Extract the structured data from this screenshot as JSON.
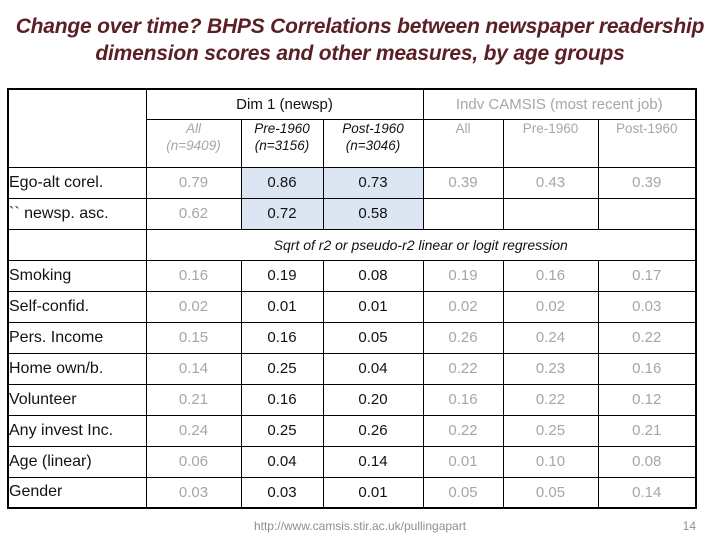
{
  "slide": {
    "title_line1": "Change over time? BHPS Correlations between newspaper readership",
    "title_line2": "dimension scores and other measures, by age groups"
  },
  "colors": {
    "title_text": "#5b2025",
    "muted_text": "#a6a6a6",
    "highlight_fill": "#dce6f2",
    "border": "#000000"
  },
  "table": {
    "groups": [
      {
        "label": "Dim 1 (newsp)",
        "muted": false
      },
      {
        "label": "Indv CAMSIS (most recent job)",
        "muted": true
      }
    ],
    "col_headers": [
      {
        "label": "All",
        "sub": "(n=9409)",
        "muted": true,
        "italic": true,
        "bold": false
      },
      {
        "label": "Pre-1960",
        "sub": "(n=3156)",
        "muted": false,
        "italic": true,
        "bold": true
      },
      {
        "label": "Post-1960",
        "sub": "(n=3046)",
        "muted": false,
        "italic": true,
        "bold": true
      },
      {
        "label": "All",
        "sub": "",
        "muted": true,
        "italic": false,
        "bold": false
      },
      {
        "label": "Pre-1960",
        "sub": "",
        "muted": true,
        "italic": false,
        "bold": false
      },
      {
        "label": "Post-1960",
        "sub": "",
        "muted": true,
        "italic": false,
        "bold": false
      }
    ],
    "value_style_pattern": [
      "muted",
      "strong",
      "strong",
      "muted",
      "muted",
      "muted"
    ],
    "top_rows": [
      {
        "label": "Ego-alt corel.",
        "values": [
          "0.79",
          "0.86",
          "0.73",
          "0.39",
          "0.43",
          "0.39"
        ],
        "highlights": [
          1,
          2
        ]
      },
      {
        "label": "`` newsp. asc.",
        "values": [
          "0.62",
          "0.72",
          "0.58",
          "",
          "",
          ""
        ],
        "highlights": [
          1,
          2
        ]
      }
    ],
    "divider_label": "Sqrt of r2 or pseudo-r2 linear or logit regression",
    "rows": [
      {
        "label": "Smoking",
        "values": [
          "0.16",
          "0.19",
          "0.08",
          "0.19",
          "0.16",
          "0.17"
        ]
      },
      {
        "label": "Self-confid.",
        "values": [
          "0.02",
          "0.01",
          "0.01",
          "0.02",
          "0.02",
          "0.03"
        ]
      },
      {
        "label": "Pers. Income",
        "values": [
          "0.15",
          "0.16",
          "0.05",
          "0.26",
          "0.24",
          "0.22"
        ]
      },
      {
        "label": "Home own/b.",
        "values": [
          "0.14",
          "0.25",
          "0.04",
          "0.22",
          "0.23",
          "0.16"
        ]
      },
      {
        "label": "Volunteer",
        "values": [
          "0.21",
          "0.16",
          "0.20",
          "0.16",
          "0.22",
          "0.12"
        ]
      },
      {
        "label": "Any invest Inc.",
        "values": [
          "0.24",
          "0.25",
          "0.26",
          "0.22",
          "0.25",
          "0.21"
        ]
      },
      {
        "label": "Age (linear)",
        "values": [
          "0.06",
          "0.04",
          "0.14",
          "0.01",
          "0.10",
          "0.08"
        ]
      },
      {
        "label": "Gender",
        "values": [
          "0.03",
          "0.03",
          "0.01",
          "0.05",
          "0.05",
          "0.14"
        ]
      }
    ]
  },
  "footer": {
    "url": "http://www.camsis.stir.ac.uk/pullingapart",
    "page": "14"
  }
}
